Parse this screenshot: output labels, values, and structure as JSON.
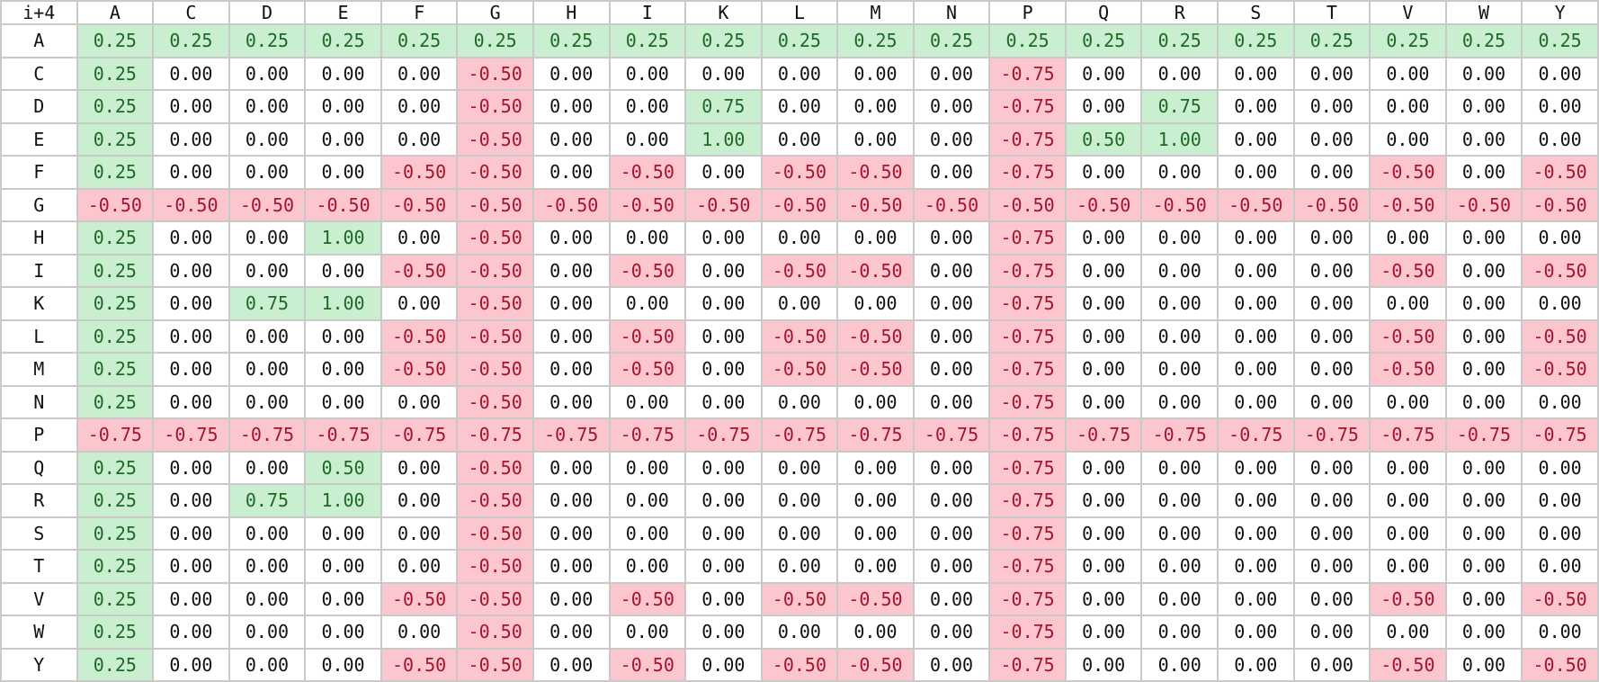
{
  "corner_label": "i+4",
  "columns": [
    "A",
    "C",
    "D",
    "E",
    "F",
    "G",
    "H",
    "I",
    "K",
    "L",
    "M",
    "N",
    "P",
    "Q",
    "R",
    "S",
    "T",
    "V",
    "W",
    "Y"
  ],
  "rows": [
    {
      "label": "A",
      "values": [
        "0.25",
        "0.25",
        "0.25",
        "0.25",
        "0.25",
        "0.25",
        "0.25",
        "0.25",
        "0.25",
        "0.25",
        "0.25",
        "0.25",
        "0.25",
        "0.25",
        "0.25",
        "0.25",
        "0.25",
        "0.25",
        "0.25",
        "0.25"
      ]
    },
    {
      "label": "C",
      "values": [
        "0.25",
        "0.00",
        "0.00",
        "0.00",
        "0.00",
        "-0.50",
        "0.00",
        "0.00",
        "0.00",
        "0.00",
        "0.00",
        "0.00",
        "-0.75",
        "0.00",
        "0.00",
        "0.00",
        "0.00",
        "0.00",
        "0.00",
        "0.00"
      ]
    },
    {
      "label": "D",
      "values": [
        "0.25",
        "0.00",
        "0.00",
        "0.00",
        "0.00",
        "-0.50",
        "0.00",
        "0.00",
        "0.75",
        "0.00",
        "0.00",
        "0.00",
        "-0.75",
        "0.00",
        "0.75",
        "0.00",
        "0.00",
        "0.00",
        "0.00",
        "0.00"
      ]
    },
    {
      "label": "E",
      "values": [
        "0.25",
        "0.00",
        "0.00",
        "0.00",
        "0.00",
        "-0.50",
        "0.00",
        "0.00",
        "1.00",
        "0.00",
        "0.00",
        "0.00",
        "-0.75",
        "0.50",
        "1.00",
        "0.00",
        "0.00",
        "0.00",
        "0.00",
        "0.00"
      ]
    },
    {
      "label": "F",
      "values": [
        "0.25",
        "0.00",
        "0.00",
        "0.00",
        "-0.50",
        "-0.50",
        "0.00",
        "-0.50",
        "0.00",
        "-0.50",
        "-0.50",
        "0.00",
        "-0.75",
        "0.00",
        "0.00",
        "0.00",
        "0.00",
        "-0.50",
        "0.00",
        "-0.50"
      ]
    },
    {
      "label": "G",
      "values": [
        "-0.50",
        "-0.50",
        "-0.50",
        "-0.50",
        "-0.50",
        "-0.50",
        "-0.50",
        "-0.50",
        "-0.50",
        "-0.50",
        "-0.50",
        "-0.50",
        "-0.50",
        "-0.50",
        "-0.50",
        "-0.50",
        "-0.50",
        "-0.50",
        "-0.50",
        "-0.50"
      ]
    },
    {
      "label": "H",
      "values": [
        "0.25",
        "0.00",
        "0.00",
        "1.00",
        "0.00",
        "-0.50",
        "0.00",
        "0.00",
        "0.00",
        "0.00",
        "0.00",
        "0.00",
        "-0.75",
        "0.00",
        "0.00",
        "0.00",
        "0.00",
        "0.00",
        "0.00",
        "0.00"
      ]
    },
    {
      "label": "I",
      "values": [
        "0.25",
        "0.00",
        "0.00",
        "0.00",
        "-0.50",
        "-0.50",
        "0.00",
        "-0.50",
        "0.00",
        "-0.50",
        "-0.50",
        "0.00",
        "-0.75",
        "0.00",
        "0.00",
        "0.00",
        "0.00",
        "-0.50",
        "0.00",
        "-0.50"
      ]
    },
    {
      "label": "K",
      "values": [
        "0.25",
        "0.00",
        "0.75",
        "1.00",
        "0.00",
        "-0.50",
        "0.00",
        "0.00",
        "0.00",
        "0.00",
        "0.00",
        "0.00",
        "-0.75",
        "0.00",
        "0.00",
        "0.00",
        "0.00",
        "0.00",
        "0.00",
        "0.00"
      ]
    },
    {
      "label": "L",
      "values": [
        "0.25",
        "0.00",
        "0.00",
        "0.00",
        "-0.50",
        "-0.50",
        "0.00",
        "-0.50",
        "0.00",
        "-0.50",
        "-0.50",
        "0.00",
        "-0.75",
        "0.00",
        "0.00",
        "0.00",
        "0.00",
        "-0.50",
        "0.00",
        "-0.50"
      ]
    },
    {
      "label": "M",
      "values": [
        "0.25",
        "0.00",
        "0.00",
        "0.00",
        "-0.50",
        "-0.50",
        "0.00",
        "-0.50",
        "0.00",
        "-0.50",
        "-0.50",
        "0.00",
        "-0.75",
        "0.00",
        "0.00",
        "0.00",
        "0.00",
        "-0.50",
        "0.00",
        "-0.50"
      ]
    },
    {
      "label": "N",
      "values": [
        "0.25",
        "0.00",
        "0.00",
        "0.00",
        "0.00",
        "-0.50",
        "0.00",
        "0.00",
        "0.00",
        "0.00",
        "0.00",
        "0.00",
        "-0.75",
        "0.00",
        "0.00",
        "0.00",
        "0.00",
        "0.00",
        "0.00",
        "0.00"
      ]
    },
    {
      "label": "P",
      "values": [
        "-0.75",
        "-0.75",
        "-0.75",
        "-0.75",
        "-0.75",
        "-0.75",
        "-0.75",
        "-0.75",
        "-0.75",
        "-0.75",
        "-0.75",
        "-0.75",
        "-0.75",
        "-0.75",
        "-0.75",
        "-0.75",
        "-0.75",
        "-0.75",
        "-0.75",
        "-0.75"
      ]
    },
    {
      "label": "Q",
      "values": [
        "0.25",
        "0.00",
        "0.00",
        "0.50",
        "0.00",
        "-0.50",
        "0.00",
        "0.00",
        "0.00",
        "0.00",
        "0.00",
        "0.00",
        "-0.75",
        "0.00",
        "0.00",
        "0.00",
        "0.00",
        "0.00",
        "0.00",
        "0.00"
      ]
    },
    {
      "label": "R",
      "values": [
        "0.25",
        "0.00",
        "0.75",
        "1.00",
        "0.00",
        "-0.50",
        "0.00",
        "0.00",
        "0.00",
        "0.00",
        "0.00",
        "0.00",
        "-0.75",
        "0.00",
        "0.00",
        "0.00",
        "0.00",
        "0.00",
        "0.00",
        "0.00"
      ]
    },
    {
      "label": "S",
      "values": [
        "0.25",
        "0.00",
        "0.00",
        "0.00",
        "0.00",
        "-0.50",
        "0.00",
        "0.00",
        "0.00",
        "0.00",
        "0.00",
        "0.00",
        "-0.75",
        "0.00",
        "0.00",
        "0.00",
        "0.00",
        "0.00",
        "0.00",
        "0.00"
      ]
    },
    {
      "label": "T",
      "values": [
        "0.25",
        "0.00",
        "0.00",
        "0.00",
        "0.00",
        "-0.50",
        "0.00",
        "0.00",
        "0.00",
        "0.00",
        "0.00",
        "0.00",
        "-0.75",
        "0.00",
        "0.00",
        "0.00",
        "0.00",
        "0.00",
        "0.00",
        "0.00"
      ]
    },
    {
      "label": "V",
      "values": [
        "0.25",
        "0.00",
        "0.00",
        "0.00",
        "-0.50",
        "-0.50",
        "0.00",
        "-0.50",
        "0.00",
        "-0.50",
        "-0.50",
        "0.00",
        "-0.75",
        "0.00",
        "0.00",
        "0.00",
        "0.00",
        "-0.50",
        "0.00",
        "-0.50"
      ]
    },
    {
      "label": "W",
      "values": [
        "0.25",
        "0.00",
        "0.00",
        "0.00",
        "0.00",
        "-0.50",
        "0.00",
        "0.00",
        "0.00",
        "0.00",
        "0.00",
        "0.00",
        "-0.75",
        "0.00",
        "0.00",
        "0.00",
        "0.00",
        "0.00",
        "0.00",
        "0.00"
      ]
    },
    {
      "label": "Y",
      "values": [
        "0.25",
        "0.00",
        "0.00",
        "0.00",
        "-0.50",
        "-0.50",
        "0.00",
        "-0.50",
        "0.00",
        "-0.50",
        "-0.50",
        "0.00",
        "-0.75",
        "0.00",
        "0.00",
        "0.00",
        "0.00",
        "-0.50",
        "0.00",
        "-0.50"
      ]
    }
  ],
  "colors": {
    "positive_bg": "#c9eed0",
    "positive_text": "#1c6a25",
    "negative_bg": "#fcc6ce",
    "negative_text": "#a8122a",
    "neutral_bg": "#ffffff",
    "neutral_text": "#111111",
    "grid_line": "#c9c9c9"
  }
}
